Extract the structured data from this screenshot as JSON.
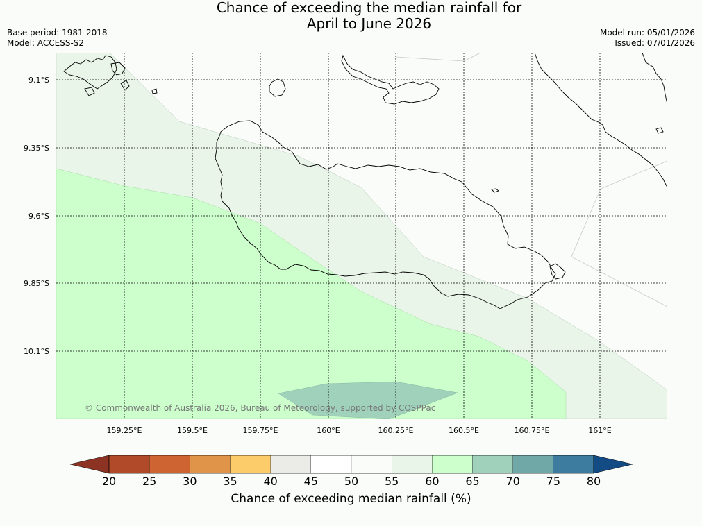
{
  "title": {
    "line1": "Chance of exceeding the median rainfall for",
    "line2": "April to June 2026"
  },
  "meta": {
    "base_period": "Base period: 1981-2018",
    "model": "Model: ACCESS-S2",
    "model_run": "Model run: 05/01/2026",
    "issued": "Issued: 07/01/2026"
  },
  "map": {
    "lat_labels": [
      "9.1°S",
      "9.35°S",
      "9.6°S",
      "9.85°S",
      "10.1°S"
    ],
    "lon_labels": [
      "159.25°E",
      "159.5°E",
      "159.75°E",
      "160°E",
      "160.25°E",
      "160.5°E",
      "160.75°E",
      "161°E"
    ],
    "copyright": "© Commonwealth of Australia 2026, Bureau of Meteorology, supported by COSPPac"
  },
  "colorbar": {
    "ticks": [
      "20",
      "25",
      "30",
      "35",
      "40",
      "45",
      "50",
      "55",
      "60",
      "65",
      "70",
      "75",
      "80"
    ],
    "label": "Chance of exceeding median rainfall (%)",
    "colors": [
      "#b04a28",
      "#cf6433",
      "#e0944a",
      "#fdcc6a",
      "#ebebe8",
      "#ffffff",
      "#fafcfa",
      "#e9f5e9",
      "#ccffcc",
      "#9fd1bb",
      "#70a8a8",
      "#3d7c9e"
    ],
    "under_color": "#8c3323",
    "over_color": "#134c85"
  }
}
